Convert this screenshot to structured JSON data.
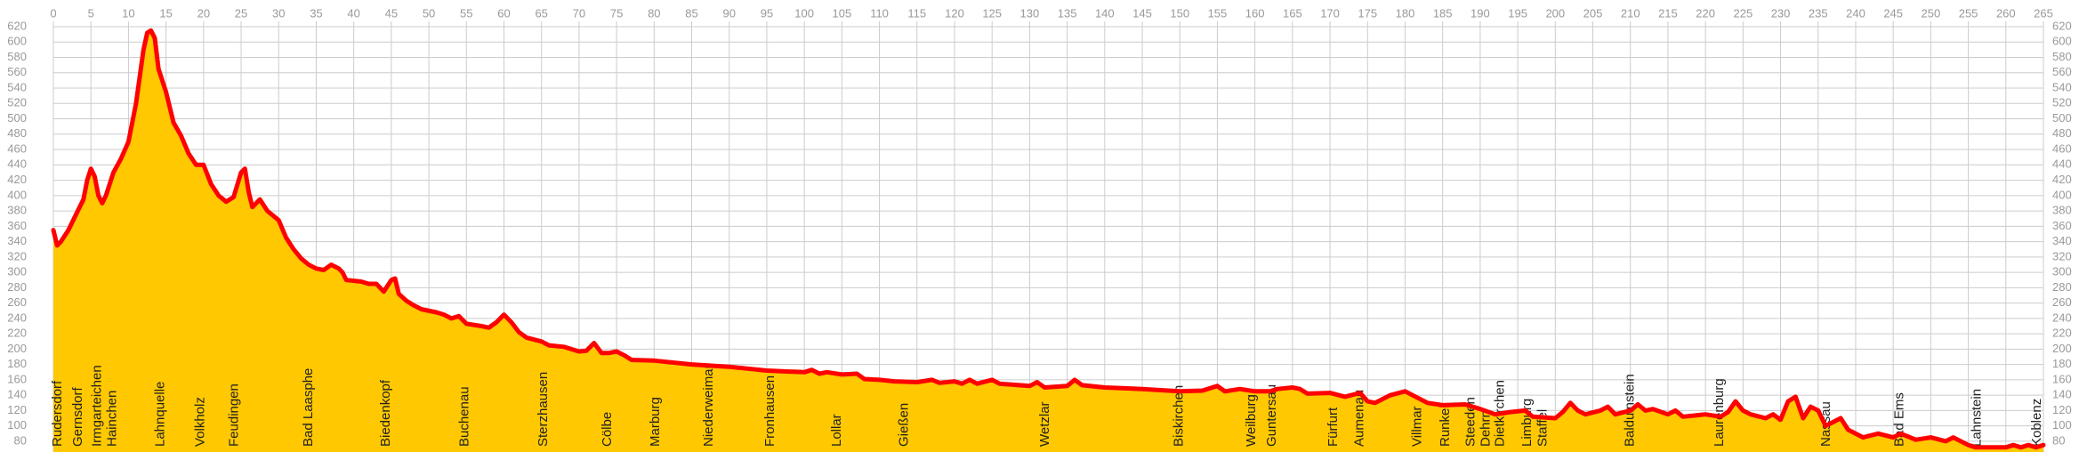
{
  "chart_data": {
    "type": "area",
    "x": [
      0,
      0.5,
      1,
      2,
      3,
      4,
      4.5,
      5,
      5.5,
      6,
      6.5,
      7,
      8,
      9,
      10,
      11,
      12,
      12.5,
      13,
      13.5,
      14,
      15,
      16,
      17,
      18,
      19,
      20,
      21,
      22,
      23,
      24,
      25,
      25.5,
      26,
      26.5,
      27.5,
      28.5,
      30,
      31,
      32,
      33,
      34,
      35,
      36,
      37,
      38,
      38.5,
      39,
      41,
      42,
      43,
      44,
      45,
      45.5,
      46,
      47,
      48,
      49,
      51,
      52,
      53,
      54,
      55,
      57,
      58,
      59,
      60,
      61,
      62,
      63,
      65,
      66,
      68,
      70,
      71,
      72,
      73,
      74,
      75,
      76,
      77,
      80,
      85,
      90,
      95,
      100,
      101,
      102,
      103,
      105,
      107,
      108,
      110,
      112,
      115,
      117,
      118,
      120,
      121,
      122,
      123,
      125,
      126,
      130,
      131,
      132,
      135,
      136,
      137,
      140,
      145,
      150,
      153,
      155,
      156,
      158,
      160,
      162,
      163,
      165,
      166,
      167,
      170,
      172,
      174,
      175,
      176,
      178,
      180,
      181,
      183,
      185,
      188,
      190,
      192,
      194,
      196,
      197,
      200,
      201,
      202,
      203,
      204,
      206,
      207,
      208,
      210,
      211,
      212,
      213,
      215,
      216,
      217,
      220,
      222,
      223,
      224,
      225,
      226,
      228,
      229,
      230,
      231,
      232,
      233,
      234,
      235,
      236,
      237,
      238,
      239,
      241,
      243,
      245,
      246,
      248,
      250,
      252,
      253,
      255,
      256,
      258,
      260,
      261,
      262,
      263,
      264,
      265
    ],
    "values": [
      355,
      335,
      340,
      355,
      375,
      395,
      420,
      435,
      425,
      400,
      390,
      400,
      430,
      448,
      470,
      520,
      590,
      612,
      615,
      605,
      565,
      535,
      495,
      478,
      455,
      440,
      440,
      415,
      400,
      392,
      398,
      430,
      435,
      405,
      385,
      395,
      380,
      368,
      345,
      330,
      318,
      310,
      305,
      303,
      310,
      305,
      300,
      290,
      288,
      285,
      285,
      275,
      290,
      292,
      272,
      263,
      257,
      252,
      248,
      245,
      240,
      243,
      233,
      230,
      228,
      235,
      245,
      235,
      222,
      215,
      210,
      205,
      203,
      197,
      198,
      208,
      195,
      195,
      197,
      192,
      186,
      185,
      180,
      177,
      172,
      170,
      173,
      168,
      170,
      167,
      168,
      161,
      160,
      158,
      157,
      160,
      156,
      158,
      155,
      160,
      155,
      160,
      155,
      152,
      157,
      150,
      152,
      160,
      153,
      150,
      148,
      145,
      146,
      152,
      145,
      148,
      145,
      145,
      148,
      150,
      148,
      142,
      143,
      138,
      143,
      132,
      130,
      140,
      145,
      140,
      130,
      127,
      128,
      122,
      115,
      118,
      120,
      112,
      110,
      118,
      130,
      120,
      115,
      120,
      125,
      115,
      120,
      128,
      120,
      122,
      115,
      120,
      112,
      115,
      112,
      118,
      132,
      120,
      115,
      110,
      115,
      108,
      132,
      138,
      110,
      125,
      120,
      100,
      105,
      110,
      95,
      85,
      90,
      85,
      90,
      82,
      85,
      80,
      85,
      75,
      72,
      72,
      72,
      75,
      72,
      75,
      72,
      75
    ],
    "color": "#ffc800",
    "line_color": "#ff0000",
    "xlim": [
      0,
      265
    ],
    "ylim": [
      66,
      620
    ],
    "xticks": [
      0,
      5,
      10,
      15,
      20,
      25,
      30,
      35,
      40,
      45,
      50,
      55,
      60,
      65,
      70,
      75,
      80,
      85,
      90,
      95,
      100,
      105,
      110,
      115,
      120,
      125,
      130,
      135,
      140,
      145,
      150,
      155,
      160,
      165,
      170,
      175,
      180,
      185,
      190,
      195,
      200,
      205,
      210,
      215,
      220,
      225,
      230,
      235,
      240,
      245,
      250,
      255,
      260,
      265
    ],
    "yticks": [
      80,
      100,
      120,
      140,
      160,
      180,
      200,
      220,
      240,
      260,
      280,
      300,
      320,
      340,
      360,
      380,
      400,
      420,
      440,
      460,
      480,
      500,
      520,
      540,
      560,
      580,
      600,
      620
    ],
    "grid": true,
    "places": [
      {
        "name": "Rudersdorf",
        "km": 0
      },
      {
        "name": "Gernsdorf",
        "km": 2.7
      },
      {
        "name": "Irmgarteichen",
        "km": 5.3
      },
      {
        "name": "Hainchen",
        "km": 7.3
      },
      {
        "name": "Lahnquelle",
        "km": 13.7
      },
      {
        "name": "Volkholz",
        "km": 19
      },
      {
        "name": "Feudingen",
        "km": 23.5
      },
      {
        "name": "Bad Laasphe",
        "km": 33.4
      },
      {
        "name": "Biedenkopf",
        "km": 43.7
      },
      {
        "name": "Buchenau",
        "km": 54.2
      },
      {
        "name": "Sterzhausen",
        "km": 64.7
      },
      {
        "name": "Cölbe",
        "km": 73.2
      },
      {
        "name": "Marburg",
        "km": 79.6
      },
      {
        "name": "Niederweimar",
        "km": 86.7
      },
      {
        "name": "Fronhausen",
        "km": 94.9
      },
      {
        "name": "Lollar",
        "km": 103.8
      },
      {
        "name": "Gießen",
        "km": 112.7
      },
      {
        "name": "Wetzlar",
        "km": 131.5
      },
      {
        "name": "Biskirchen",
        "km": 149.3
      },
      {
        "name": "Weilburg",
        "km": 159
      },
      {
        "name": "Guntersau",
        "km": 161.7
      },
      {
        "name": "Fürfurt",
        "km": 169.9
      },
      {
        "name": "Aumenau",
        "km": 173.4
      },
      {
        "name": "Villmar",
        "km": 181.1
      },
      {
        "name": "Runkel",
        "km": 184.8
      },
      {
        "name": "Steeden",
        "km": 188.2
      },
      {
        "name": "Dehrn",
        "km": 190.2
      },
      {
        "name": "Dietkirchen",
        "km": 192.1
      },
      {
        "name": "Limburg",
        "km": 195.7
      },
      {
        "name": "Staffel",
        "km": 197.8
      },
      {
        "name": "Balduinstein",
        "km": 209.4
      },
      {
        "name": "Laurenburg",
        "km": 221.3
      },
      {
        "name": "Nassau",
        "km": 235.5
      },
      {
        "name": "Bad Ems",
        "km": 245.3
      },
      {
        "name": "Lahnstein",
        "km": 255.6
      },
      {
        "name": "Koblenz",
        "km": 263.6
      }
    ]
  }
}
